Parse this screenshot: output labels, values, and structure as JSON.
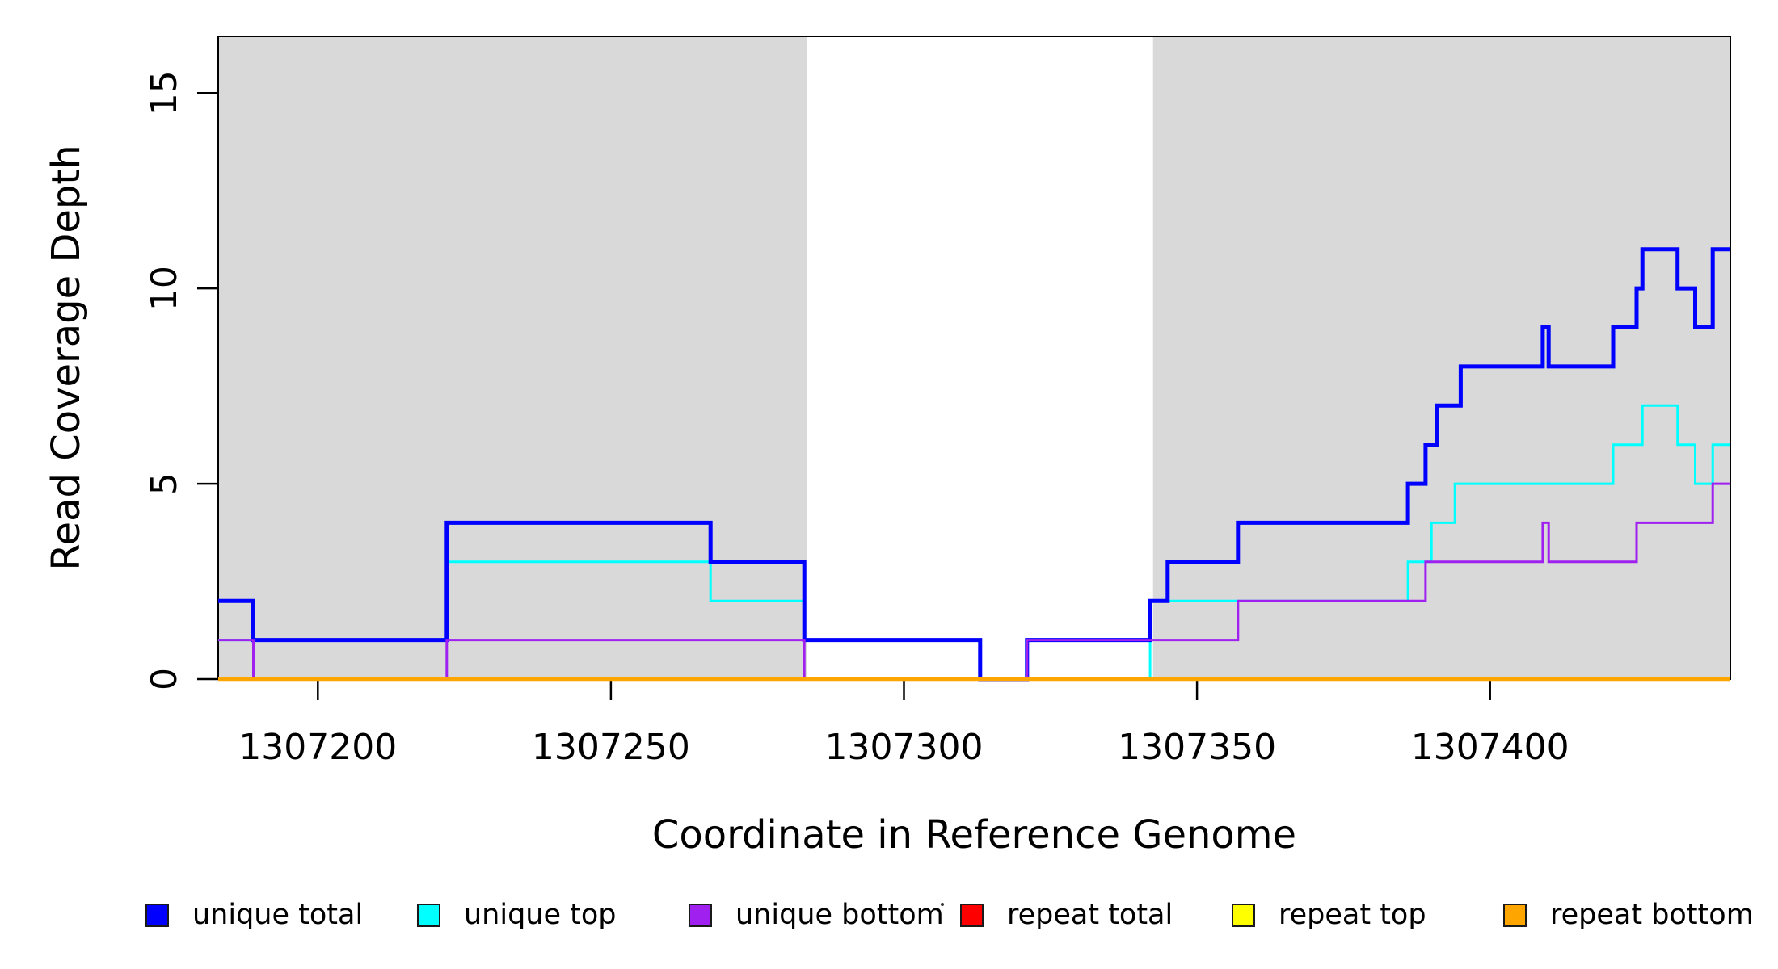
{
  "chart_data": {
    "type": "line",
    "step": true,
    "title": "",
    "xlabel": "Coordinate in Reference Genome",
    "ylabel": "Read Coverage Depth",
    "xlim": [
      1307183,
      1307441
    ],
    "ylim": [
      0,
      16.45
    ],
    "x_ticks": [
      1307200,
      1307250,
      1307300,
      1307350,
      1307400
    ],
    "x_tick_labels": [
      "1307200",
      "1307250",
      "1307300",
      "1307350",
      "1307400"
    ],
    "y_ticks": [
      0,
      5,
      10,
      15
    ],
    "y_tick_labels": [
      "0",
      "5",
      "10",
      "15"
    ],
    "grid": false,
    "box_color": "#000000",
    "plot_background": "#ffffff",
    "shaded_regions": [
      {
        "x0": 1307183,
        "x1": 1307283.5,
        "color": "#d9d9d9"
      },
      {
        "x0": 1307342.5,
        "x1": 1307441,
        "color": "#d9d9d9"
      }
    ],
    "draw_sequence": [
      1,
      0,
      2,
      3,
      4,
      5
    ],
    "series": [
      {
        "name": "unique total",
        "color": "#0000FF",
        "lwd": 5,
        "points": [
          [
            1307183,
            2
          ],
          [
            1307189,
            1
          ],
          [
            1307222,
            4
          ],
          [
            1307267,
            3
          ],
          [
            1307283,
            1
          ],
          [
            1307313,
            0
          ],
          [
            1307321,
            1
          ],
          [
            1307342,
            2
          ],
          [
            1307345,
            3
          ],
          [
            1307357,
            4
          ],
          [
            1307386,
            5
          ],
          [
            1307389,
            6
          ],
          [
            1307391,
            7
          ],
          [
            1307395,
            8
          ],
          [
            1307409,
            9
          ],
          [
            1307410,
            8
          ],
          [
            1307421,
            9
          ],
          [
            1307425,
            10
          ],
          [
            1307426,
            11
          ],
          [
            1307432,
            10
          ],
          [
            1307435,
            9
          ],
          [
            1307438,
            11
          ]
        ]
      },
      {
        "name": "unique top",
        "color": "#00FFFF",
        "lwd": 3,
        "points": [
          [
            1307183,
            1
          ],
          [
            1307222,
            3
          ],
          [
            1307267,
            2
          ],
          [
            1307283,
            1
          ],
          [
            1307313,
            0
          ],
          [
            1307342,
            2
          ],
          [
            1307386,
            3
          ],
          [
            1307390,
            4
          ],
          [
            1307394,
            5
          ],
          [
            1307421,
            6
          ],
          [
            1307426,
            7
          ],
          [
            1307432,
            6
          ],
          [
            1307435,
            5
          ],
          [
            1307438,
            6
          ]
        ]
      },
      {
        "name": "unique bottom",
        "color": "#A020F0",
        "lwd": 3,
        "points": [
          [
            1307183,
            1
          ],
          [
            1307189,
            0
          ],
          [
            1307222,
            1
          ],
          [
            1307283,
            0
          ],
          [
            1307321,
            1
          ],
          [
            1307357,
            2
          ],
          [
            1307389,
            3
          ],
          [
            1307409,
            4
          ],
          [
            1307410,
            3
          ],
          [
            1307425,
            4
          ],
          [
            1307438,
            5
          ]
        ]
      },
      {
        "name": "repeat total",
        "color": "#FF0000",
        "lwd": 3,
        "points": [
          [
            1307183,
            0
          ]
        ]
      },
      {
        "name": "repeat top",
        "color": "#FFFF00",
        "lwd": 3.5,
        "points": [
          [
            1307183,
            0
          ]
        ]
      },
      {
        "name": "repeat bottom",
        "color": "#FFA500",
        "lwd": 4.5,
        "points": [
          [
            1307183,
            0
          ]
        ]
      }
    ],
    "legend": {
      "position": "bottom",
      "items": [
        {
          "label": "unique total",
          "color": "#0000FF"
        },
        {
          "label": "unique top",
          "color": "#00FFFF"
        },
        {
          "label": "unique bottom",
          "color": "#A020F0"
        },
        {
          "label": "repeat total",
          "color": "#FF0000"
        },
        {
          "label": "repeat top",
          "color": "#FFFF00"
        },
        {
          "label": "repeat bottom",
          "color": "#FFA500"
        }
      ]
    }
  }
}
